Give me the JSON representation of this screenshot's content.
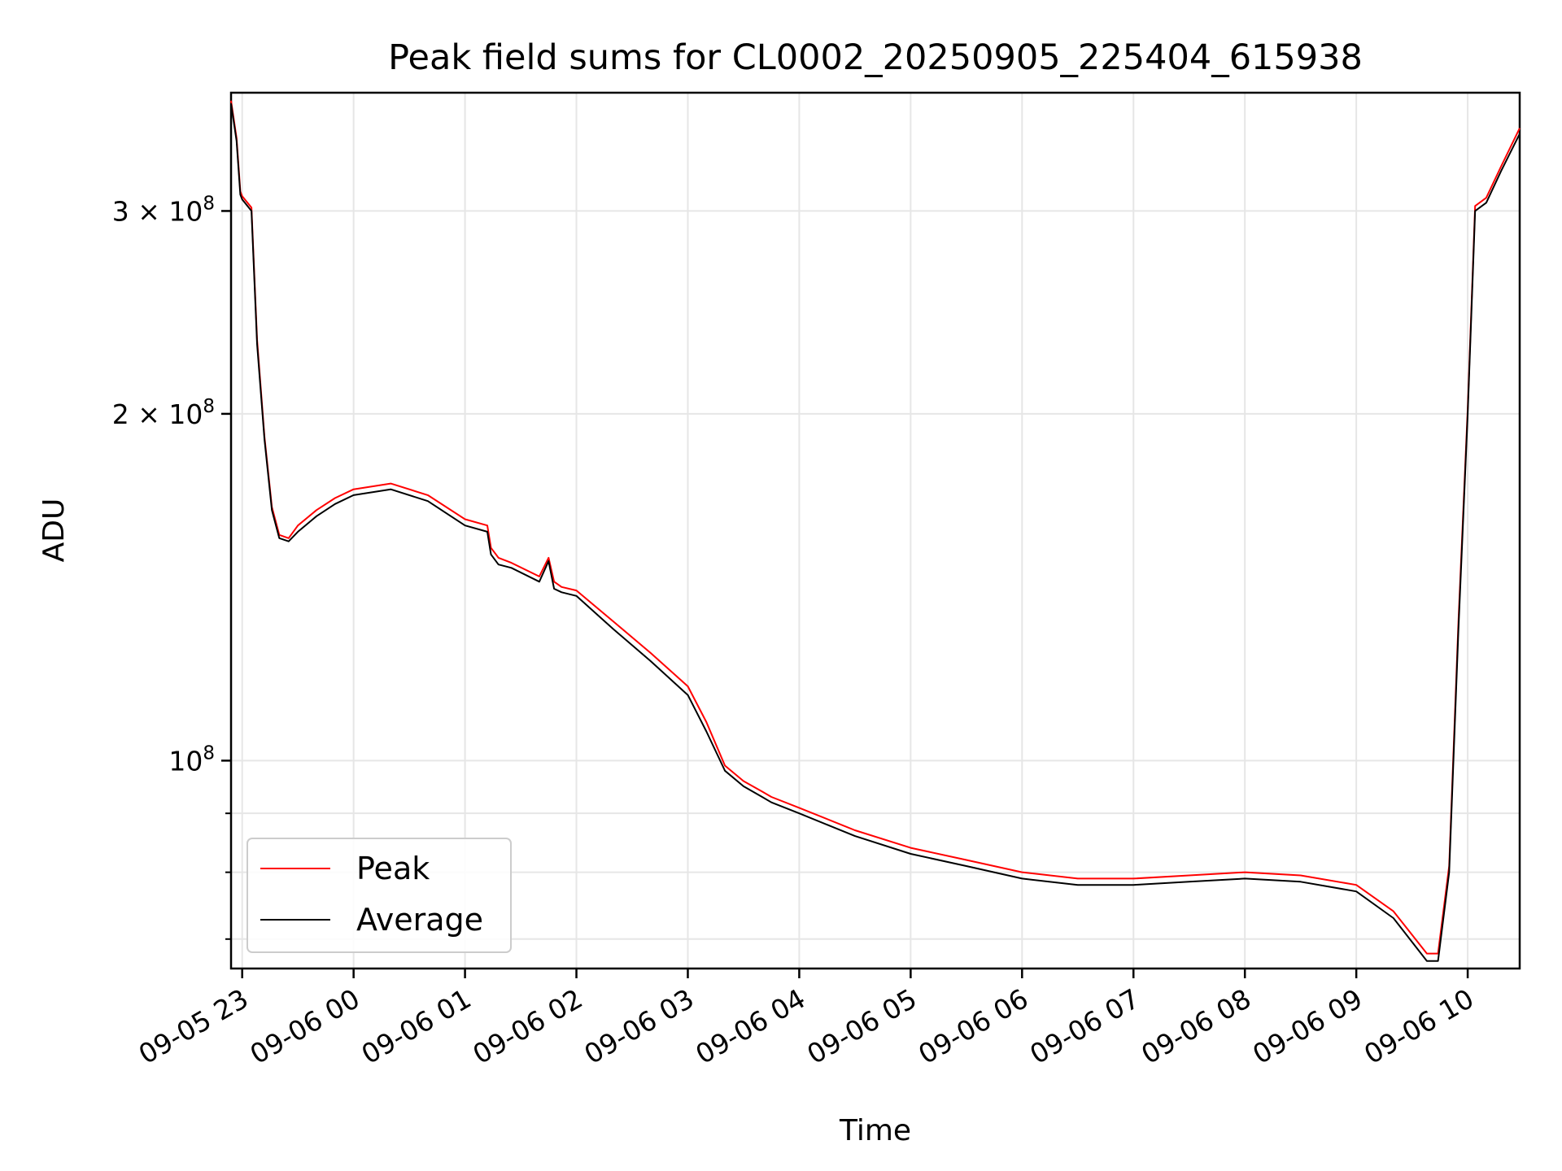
{
  "chart_data": {
    "type": "line",
    "title": "Peak field sums for CL0002_20250905_225404_615938",
    "xlabel": "Time",
    "ylabel": "ADU",
    "yscale": "log",
    "ylim": [
      66000000,
      380000000
    ],
    "xlim": [
      "2025-09-05 22:54",
      "2025-09-06 10:28"
    ],
    "grid": true,
    "legend": {
      "placement": "lower-left",
      "entries": [
        "Peak",
        "Average"
      ]
    },
    "colors": {
      "Peak": "#ff0000",
      "Average": "#000000"
    },
    "x_ticks": [
      {
        "t": "2025-09-05 23:00",
        "label": "09-05 23"
      },
      {
        "t": "2025-09-06 00:00",
        "label": "09-06 00"
      },
      {
        "t": "2025-09-06 01:00",
        "label": "09-06 01"
      },
      {
        "t": "2025-09-06 02:00",
        "label": "09-06 02"
      },
      {
        "t": "2025-09-06 03:00",
        "label": "09-06 03"
      },
      {
        "t": "2025-09-06 04:00",
        "label": "09-06 04"
      },
      {
        "t": "2025-09-06 05:00",
        "label": "09-06 05"
      },
      {
        "t": "2025-09-06 06:00",
        "label": "09-06 06"
      },
      {
        "t": "2025-09-06 07:00",
        "label": "09-06 07"
      },
      {
        "t": "2025-09-06 08:00",
        "label": "09-06 08"
      },
      {
        "t": "2025-09-06 09:00",
        "label": "09-06 09"
      },
      {
        "t": "2025-09-06 10:00",
        "label": "09-06 10"
      }
    ],
    "y_ticks": [
      {
        "v": 100000000,
        "base": "10",
        "exp": "8"
      },
      {
        "v": 200000000,
        "base": "2 × 10",
        "exp": "8"
      },
      {
        "v": 300000000,
        "base": "3 × 10",
        "exp": "8"
      }
    ],
    "y_minor_ticks": [
      60000000,
      70000000,
      80000000,
      90000000,
      400000000
    ],
    "series": [
      {
        "name": "Average",
        "x": [
          "2025-09-05 22:54",
          "2025-09-05 22:57",
          "2025-09-05 22:59",
          "2025-09-05 23:00",
          "2025-09-05 23:05",
          "2025-09-05 23:08",
          "2025-09-05 23:12",
          "2025-09-05 23:16",
          "2025-09-05 23:20",
          "2025-09-05 23:25",
          "2025-09-05 23:30",
          "2025-09-05 23:40",
          "2025-09-05 23:50",
          "2025-09-06 00:00",
          "2025-09-06 00:20",
          "2025-09-06 00:40",
          "2025-09-06 01:00",
          "2025-09-06 01:12",
          "2025-09-06 01:14",
          "2025-09-06 01:18",
          "2025-09-06 01:25",
          "2025-09-06 01:40",
          "2025-09-06 01:45",
          "2025-09-06 01:48",
          "2025-09-06 01:52",
          "2025-09-06 02:00",
          "2025-09-06 02:20",
          "2025-09-06 02:40",
          "2025-09-06 03:00",
          "2025-09-06 03:10",
          "2025-09-06 03:20",
          "2025-09-06 03:30",
          "2025-09-06 03:40",
          "2025-09-06 03:45",
          "2025-09-06 04:00",
          "2025-09-06 04:30",
          "2025-09-06 05:00",
          "2025-09-06 05:30",
          "2025-09-06 06:00",
          "2025-09-06 06:30",
          "2025-09-06 07:00",
          "2025-09-06 07:30",
          "2025-09-06 08:00",
          "2025-09-06 08:30",
          "2025-09-06 09:00",
          "2025-09-06 09:20",
          "2025-09-06 09:38",
          "2025-09-06 09:44",
          "2025-09-06 09:50",
          "2025-09-06 09:55",
          "2025-09-06 10:00",
          "2025-09-06 10:04",
          "2025-09-06 10:10",
          "2025-09-06 10:18",
          "2025-09-06 10:28"
        ],
        "y": [
          372000000,
          345000000,
          310000000,
          307000000,
          300000000,
          230000000,
          190000000,
          165000000,
          156000000,
          155000000,
          158000000,
          163000000,
          167000000,
          170000000,
          172000000,
          168000000,
          160000000,
          158000000,
          151000000,
          148000000,
          147000000,
          143000000,
          149000000,
          141000000,
          140000000,
          139000000,
          130000000,
          122000000,
          114000000,
          106000000,
          98000000,
          95000000,
          93000000,
          92000000,
          90000000,
          86000000,
          83000000,
          81000000,
          79000000,
          78000000,
          78000000,
          78500000,
          79000000,
          78500000,
          77000000,
          73000000,
          67000000,
          67000000,
          80000000,
          130000000,
          200000000,
          300000000,
          305000000,
          325000000,
          350000000
        ]
      },
      {
        "name": "Peak",
        "x": [
          "2025-09-05 22:54",
          "2025-09-05 22:57",
          "2025-09-05 22:59",
          "2025-09-05 23:00",
          "2025-09-05 23:05",
          "2025-09-05 23:08",
          "2025-09-05 23:12",
          "2025-09-05 23:16",
          "2025-09-05 23:20",
          "2025-09-05 23:25",
          "2025-09-05 23:30",
          "2025-09-05 23:40",
          "2025-09-05 23:50",
          "2025-09-06 00:00",
          "2025-09-06 00:20",
          "2025-09-06 00:40",
          "2025-09-06 01:00",
          "2025-09-06 01:12",
          "2025-09-06 01:14",
          "2025-09-06 01:18",
          "2025-09-06 01:25",
          "2025-09-06 01:40",
          "2025-09-06 01:45",
          "2025-09-06 01:48",
          "2025-09-06 01:52",
          "2025-09-06 02:00",
          "2025-09-06 02:20",
          "2025-09-06 02:40",
          "2025-09-06 03:00",
          "2025-09-06 03:10",
          "2025-09-06 03:20",
          "2025-09-06 03:30",
          "2025-09-06 03:40",
          "2025-09-06 03:45",
          "2025-09-06 04:00",
          "2025-09-06 04:30",
          "2025-09-06 05:00",
          "2025-09-06 05:30",
          "2025-09-06 06:00",
          "2025-09-06 06:30",
          "2025-09-06 07:00",
          "2025-09-06 07:30",
          "2025-09-06 08:00",
          "2025-09-06 08:30",
          "2025-09-06 09:00",
          "2025-09-06 09:20",
          "2025-09-06 09:38",
          "2025-09-06 09:44",
          "2025-09-06 09:50",
          "2025-09-06 09:55",
          "2025-09-06 10:00",
          "2025-09-06 10:04",
          "2025-09-06 10:10",
          "2025-09-06 10:18",
          "2025-09-06 10:28"
        ],
        "y": [
          374000000,
          347000000,
          312000000,
          309000000,
          302000000,
          232000000,
          191000000,
          166000000,
          157000000,
          156000000,
          160000000,
          165000000,
          169000000,
          172000000,
          174000000,
          170000000,
          162000000,
          160000000,
          153000000,
          150000000,
          148500000,
          144500000,
          150000000,
          143000000,
          141500000,
          140500000,
          132000000,
          124000000,
          116000000,
          108000000,
          99000000,
          96000000,
          94000000,
          93000000,
          91000000,
          87000000,
          84000000,
          82000000,
          80000000,
          79000000,
          79000000,
          79500000,
          80000000,
          79500000,
          78000000,
          74000000,
          68000000,
          68000000,
          81000000,
          132000000,
          202000000,
          303000000,
          308000000,
          328000000,
          354000000
        ]
      }
    ]
  }
}
